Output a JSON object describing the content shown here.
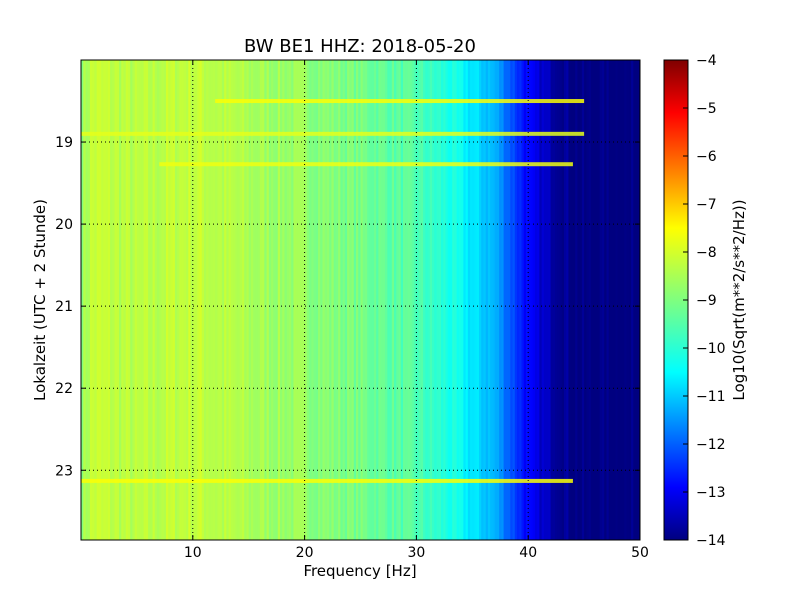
{
  "chart_data": {
    "type": "heatmap",
    "title": "BW BE1 HHZ: 2018-05-20",
    "xlabel": "Frequency [Hz]",
    "ylabel": "Lokalzeit (UTC + 2 Stunde)",
    "xlim": [
      0,
      50
    ],
    "ylim": [
      18.0,
      23.85
    ],
    "y_inverted": true,
    "x_ticks": [
      10,
      20,
      30,
      40,
      50
    ],
    "y_ticks": [
      19,
      20,
      21,
      22,
      23
    ],
    "grid": true,
    "colormap": "jet",
    "colorbar": {
      "label": "Log10(Sqrt(m**2/s**2/Hz))",
      "range": [
        -14,
        -4
      ],
      "ticks": [
        -4,
        -5,
        -6,
        -7,
        -8,
        -9,
        -10,
        -11,
        -12,
        -13,
        -14
      ]
    },
    "spectrum_profile": {
      "frequency_hz": [
        0,
        1,
        3,
        5,
        10,
        15,
        20,
        25,
        30,
        33,
        35,
        37,
        38,
        39,
        40,
        41,
        42,
        43,
        44,
        45,
        46,
        50
      ],
      "log10_amplitude": [
        -8.8,
        -8.3,
        -8.4,
        -8.5,
        -8.3,
        -8.6,
        -8.8,
        -9.1,
        -9.5,
        -10.0,
        -10.5,
        -11.0,
        -11.6,
        -12.2,
        -12.8,
        -13.2,
        -13.5,
        -13.7,
        -13.9,
        -14.0,
        -14.0,
        -14.0
      ]
    },
    "horizontal_lines": [
      {
        "time": 18.5,
        "f_start": 12,
        "f_end": 45,
        "level": -7.8
      },
      {
        "time": 18.9,
        "f_start": 0,
        "f_end": 45,
        "level": -8.0
      },
      {
        "time": 19.27,
        "f_start": 7,
        "f_end": 44,
        "level": -7.9
      },
      {
        "time": 23.13,
        "f_start": 0,
        "f_end": 44,
        "level": -7.8
      }
    ]
  }
}
